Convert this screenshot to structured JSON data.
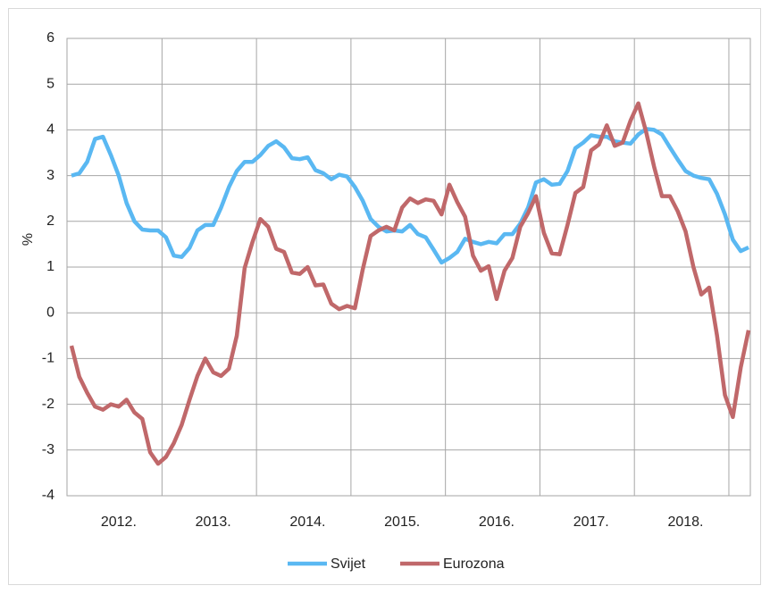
{
  "chart_data": {
    "type": "line",
    "y_label": "%",
    "categories": [
      null,
      null,
      null,
      null,
      null,
      null,
      "2012.",
      null,
      null,
      null,
      null,
      null,
      null,
      null,
      null,
      null,
      null,
      null,
      "2013.",
      null,
      null,
      null,
      null,
      null,
      null,
      null,
      null,
      null,
      null,
      null,
      "2014.",
      null,
      null,
      null,
      null,
      null,
      null,
      null,
      null,
      null,
      null,
      null,
      "2015.",
      null,
      null,
      null,
      null,
      null,
      null,
      null,
      null,
      null,
      null,
      null,
      "2016.",
      null,
      null,
      null,
      null,
      null,
      null,
      null,
      null,
      null,
      null,
      null,
      "2017.",
      null,
      null,
      null,
      null,
      null,
      null,
      null,
      null,
      null,
      null,
      null,
      "2018.",
      null,
      null,
      null,
      null,
      null,
      null,
      null,
      null
    ],
    "ylim": [
      -4,
      6
    ],
    "yticks": [
      -4,
      -3,
      -2,
      -1,
      0,
      1,
      2,
      3,
      4,
      5,
      6
    ],
    "grid": true,
    "series": [
      {
        "name": "Svijet",
        "color": "#5ab8f2",
        "values": [
          3.0,
          3.05,
          3.3,
          3.8,
          3.85,
          3.45,
          3.0,
          2.4,
          2.0,
          1.82,
          1.8,
          1.8,
          1.65,
          1.25,
          1.22,
          1.42,
          1.8,
          1.92,
          1.92,
          2.3,
          2.75,
          3.1,
          3.3,
          3.3,
          3.45,
          3.65,
          3.75,
          3.62,
          3.38,
          3.36,
          3.4,
          3.12,
          3.05,
          2.92,
          3.02,
          2.98,
          2.75,
          2.45,
          2.05,
          1.88,
          1.78,
          1.8,
          1.78,
          1.92,
          1.72,
          1.65,
          1.38,
          1.1,
          1.2,
          1.33,
          1.62,
          1.55,
          1.5,
          1.55,
          1.52,
          1.72,
          1.72,
          1.95,
          2.3,
          2.85,
          2.92,
          2.8,
          2.82,
          3.1,
          3.6,
          3.72,
          3.88,
          3.85,
          3.85,
          3.75,
          3.72,
          3.7,
          3.9,
          4.02,
          4.0,
          3.9,
          3.62,
          3.35,
          3.1,
          3.0,
          2.95,
          2.92,
          2.6,
          2.15,
          1.6,
          1.35,
          1.43
        ]
      },
      {
        "name": "Eurozona",
        "color": "#c0686a",
        "values": [
          -0.72,
          -1.4,
          -1.75,
          -2.05,
          -2.12,
          -2.0,
          -2.05,
          -1.9,
          -2.18,
          -2.32,
          -3.05,
          -3.3,
          -3.15,
          -2.85,
          -2.45,
          -1.9,
          -1.38,
          -1.0,
          -1.3,
          -1.38,
          -1.22,
          -0.5,
          0.98,
          1.55,
          2.05,
          1.88,
          1.4,
          1.33,
          0.88,
          0.85,
          1.0,
          0.6,
          0.62,
          0.2,
          0.08,
          0.15,
          0.1,
          0.95,
          1.68,
          1.8,
          1.88,
          1.8,
          2.3,
          2.5,
          2.4,
          2.48,
          2.45,
          2.15,
          2.8,
          2.42,
          2.1,
          1.25,
          0.92,
          1.02,
          0.3,
          0.92,
          1.2,
          1.88,
          2.18,
          2.55,
          1.75,
          1.3,
          1.28,
          1.92,
          2.62,
          2.75,
          3.55,
          3.68,
          4.1,
          3.65,
          3.72,
          4.2,
          4.58,
          3.95,
          3.2,
          2.55,
          2.55,
          2.22,
          1.78,
          1.0,
          0.4,
          0.55,
          -0.5,
          -1.8,
          -2.28,
          -1.2,
          -0.38
        ]
      }
    ]
  }
}
